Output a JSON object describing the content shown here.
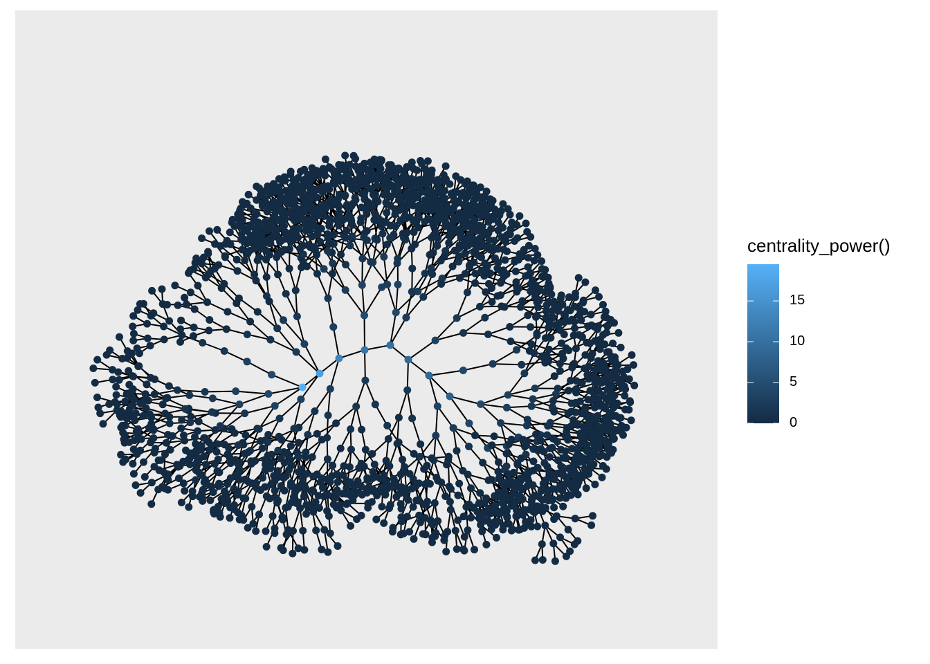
{
  "legend": {
    "title": "centrality_power()",
    "min": 0,
    "max": 19.5,
    "ticks": [
      {
        "value": 0,
        "label": "0"
      },
      {
        "value": 5,
        "label": "5"
      },
      {
        "value": 10,
        "label": "10"
      },
      {
        "value": 15,
        "label": "15"
      }
    ],
    "color_low": "#132B43",
    "color_high": "#56B1F7"
  },
  "style": {
    "panel_background": "#EBEBEB",
    "edge_color": "#000000",
    "node_base_color": "#1B3A57"
  },
  "graph": {
    "layout": "dendrogram-like tree (radial branching)",
    "hub_nodes": [
      {
        "centrality": 19.5
      },
      {
        "centrality": 17
      },
      {
        "centrality": 13
      },
      {
        "centrality": 11
      },
      {
        "centrality": 10
      },
      {
        "centrality": 9
      },
      {
        "centrality": 9
      },
      {
        "centrality": 8
      }
    ],
    "branch_count": 12
  }
}
